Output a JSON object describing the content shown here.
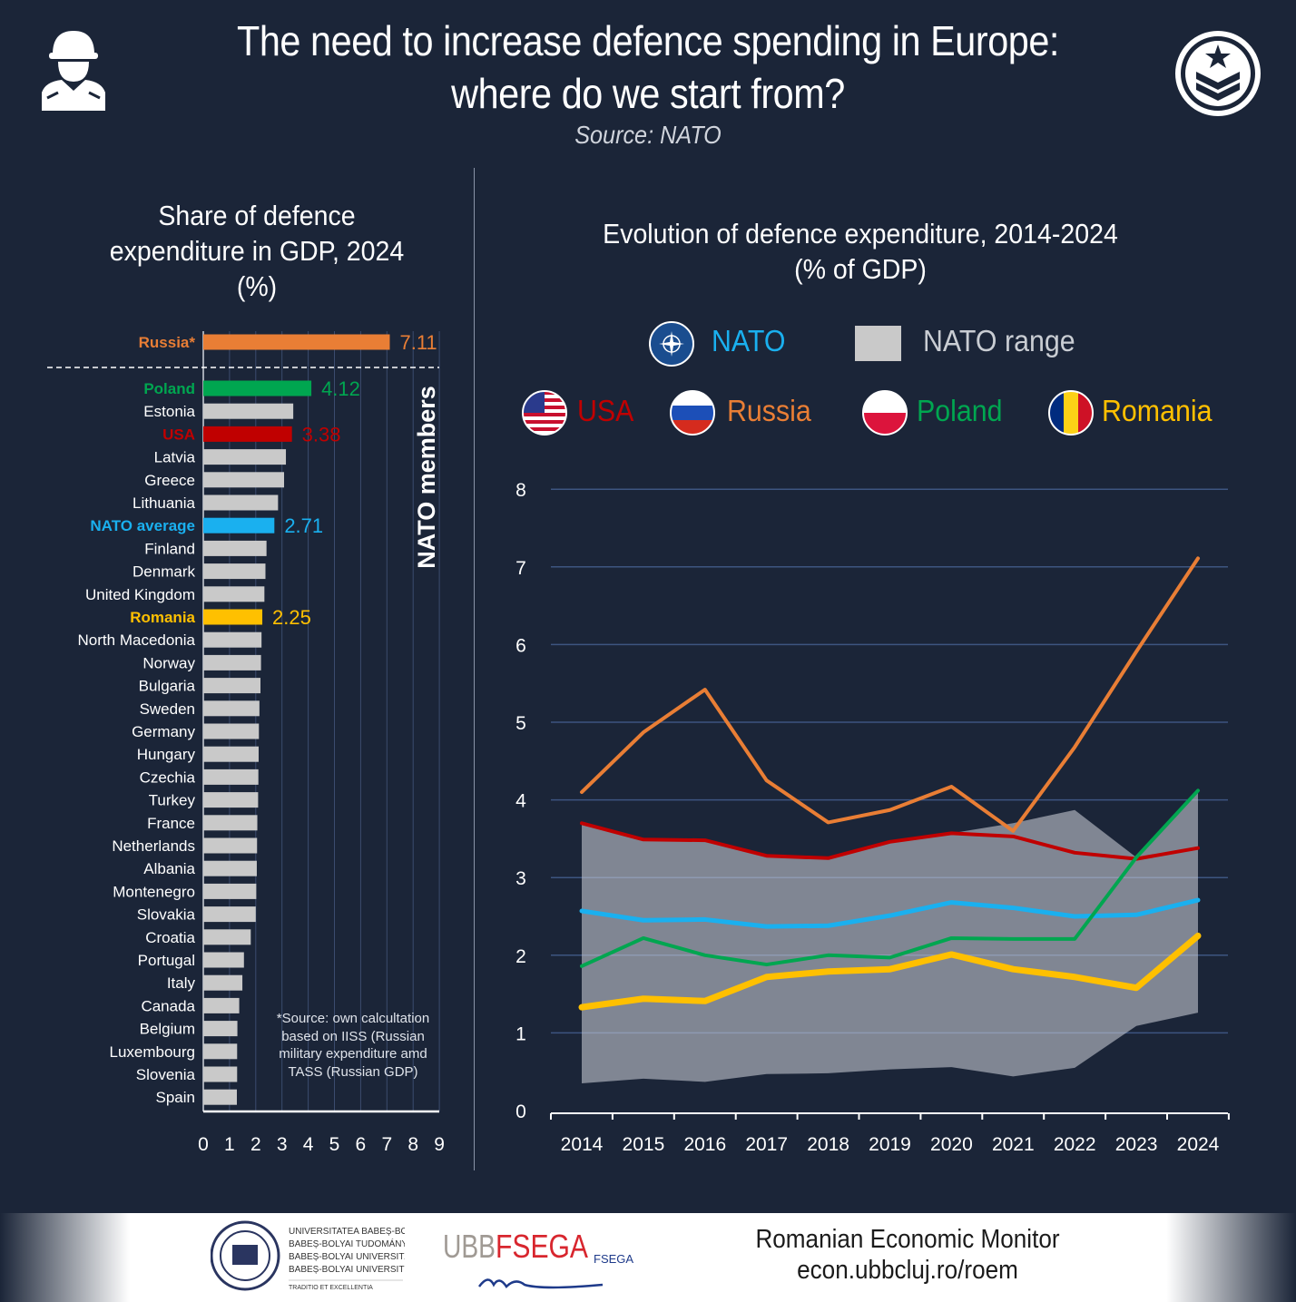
{
  "header": {
    "title_line1": "The need to increase defence spending in Europe:",
    "title_line2": "where do we start from?",
    "source": "Source: NATO"
  },
  "colors": {
    "background": "#1b2538",
    "russia": "#e97e35",
    "usa": "#c00000",
    "poland": "#00a650",
    "romania": "#ffc000",
    "nato": "#1ab0ef",
    "range": "#7a808a",
    "other": "#c9c9c9"
  },
  "chart_data": [
    {
      "type": "bar",
      "title_line1": "Share of defence",
      "title_line2": "expenditure in GDP, 2024",
      "title_line3": "(%)",
      "group_label": "NATO members",
      "xlim": [
        0,
        9
      ],
      "x_ticks": [
        "0",
        "1",
        "2",
        "3",
        "4",
        "5",
        "6",
        "7",
        "8",
        "9"
      ],
      "items": [
        {
          "label": "Russia*",
          "value": 7.11,
          "value_label": "7.11",
          "color": "#e97e35",
          "highlight": true
        },
        {
          "label": "Poland",
          "value": 4.12,
          "value_label": "4.12",
          "color": "#00a650",
          "highlight": true
        },
        {
          "label": "Estonia",
          "value": 3.43
        },
        {
          "label": "USA",
          "value": 3.38,
          "value_label": "3.38",
          "color": "#c00000",
          "highlight": true
        },
        {
          "label": "Latvia",
          "value": 3.15
        },
        {
          "label": "Greece",
          "value": 3.08
        },
        {
          "label": "Lithuania",
          "value": 2.85
        },
        {
          "label": "NATO average",
          "value": 2.71,
          "value_label": "2.71",
          "color": "#1ab0ef",
          "highlight": true
        },
        {
          "label": "Finland",
          "value": 2.41
        },
        {
          "label": "Denmark",
          "value": 2.37
        },
        {
          "label": "United Kingdom",
          "value": 2.33
        },
        {
          "label": "Romania",
          "value": 2.25,
          "value_label": "2.25",
          "color": "#ffc000",
          "highlight": true
        },
        {
          "label": "North Macedonia",
          "value": 2.22
        },
        {
          "label": "Norway",
          "value": 2.2
        },
        {
          "label": "Bulgaria",
          "value": 2.18
        },
        {
          "label": "Sweden",
          "value": 2.14
        },
        {
          "label": "Germany",
          "value": 2.12
        },
        {
          "label": "Hungary",
          "value": 2.11
        },
        {
          "label": "Czechia",
          "value": 2.1
        },
        {
          "label": "Turkey",
          "value": 2.09
        },
        {
          "label": "France",
          "value": 2.06
        },
        {
          "label": "Netherlands",
          "value": 2.05
        },
        {
          "label": "Albania",
          "value": 2.04
        },
        {
          "label": "Montenegro",
          "value": 2.02
        },
        {
          "label": "Slovakia",
          "value": 2.0
        },
        {
          "label": "Croatia",
          "value": 1.81
        },
        {
          "label": "Portugal",
          "value": 1.55
        },
        {
          "label": "Italy",
          "value": 1.49
        },
        {
          "label": "Canada",
          "value": 1.37
        },
        {
          "label": "Belgium",
          "value": 1.3
        },
        {
          "label": "Luxembourg",
          "value": 1.29
        },
        {
          "label": "Slovenia",
          "value": 1.29
        },
        {
          "label": "Spain",
          "value": 1.28
        }
      ],
      "note": "*Source: own calcultation based on IISS (Russian military expenditure amd TASS (Russian GDP)"
    },
    {
      "type": "line",
      "title_line1": "Evolution of defence expenditure, 2014-2024",
      "title_line2": "(% of GDP)",
      "x": [
        "2014",
        "2015",
        "2016",
        "2017",
        "2018",
        "2019",
        "2020",
        "2021",
        "2022",
        "2023",
        "2024"
      ],
      "ylim": [
        0,
        8
      ],
      "y_ticks": [
        "0",
        "1",
        "2",
        "3",
        "4",
        "5",
        "6",
        "7",
        "8"
      ],
      "grid": true,
      "legend": [
        {
          "name": "NATO",
          "color": "#1ab0ef",
          "icon": "nato-emblem-icon"
        },
        {
          "name": "NATO range",
          "color": "#c9c9c9",
          "icon": "gray-square"
        },
        {
          "name": "USA",
          "color": "#c00000",
          "icon": "usa-flag-icon"
        },
        {
          "name": "Russia",
          "color": "#e97e35",
          "icon": "russia-flag-icon"
        },
        {
          "name": "Poland",
          "color": "#00a650",
          "icon": "poland-flag-icon"
        },
        {
          "name": "Romania",
          "color": "#ffc000",
          "icon": "romania-flag-icon"
        }
      ],
      "range": {
        "name": "NATO range",
        "upper": [
          3.7,
          3.49,
          3.48,
          3.28,
          3.25,
          3.46,
          3.57,
          3.7,
          3.87,
          3.26,
          4.12
        ],
        "lower": [
          0.35,
          0.41,
          0.37,
          0.47,
          0.48,
          0.53,
          0.56,
          0.44,
          0.55,
          1.09,
          1.26
        ]
      },
      "series": [
        {
          "name": "Russia",
          "color": "#e97e35",
          "width": 4,
          "values": [
            4.1,
            4.87,
            5.42,
            4.25,
            3.71,
            3.87,
            4.17,
            3.6,
            4.68,
            5.91,
            7.11
          ]
        },
        {
          "name": "USA",
          "color": "#c00000",
          "width": 4,
          "values": [
            3.7,
            3.49,
            3.48,
            3.28,
            3.25,
            3.46,
            3.57,
            3.53,
            3.32,
            3.24,
            3.38
          ]
        },
        {
          "name": "NATO",
          "color": "#1ab0ef",
          "width": 5,
          "values": [
            2.57,
            2.45,
            2.46,
            2.37,
            2.38,
            2.51,
            2.68,
            2.61,
            2.5,
            2.52,
            2.71
          ]
        },
        {
          "name": "Poland",
          "color": "#00a650",
          "width": 4,
          "values": [
            1.86,
            2.22,
            2.0,
            1.88,
            2.0,
            1.97,
            2.22,
            2.21,
            2.21,
            3.26,
            4.12
          ]
        },
        {
          "name": "Romania",
          "color": "#ffc000",
          "width": 7,
          "values": [
            1.33,
            1.44,
            1.41,
            1.72,
            1.79,
            1.82,
            2.01,
            1.82,
            1.72,
            1.58,
            2.25
          ]
        }
      ]
    }
  ],
  "footer": {
    "university_logo_text": "UNIVERSITATEA BABEȘ-BOLYAI / BABEȘ-BOLYAI TUDOMÁNYEGYETEM / BABEȘ-BOLYAI UNIVERSITÄT / BABEȘ-BOLYAI UNIVERSITY / TRADITIO ET EXCELLENTIA",
    "fsega_logo_text": "UBBFSEGA",
    "monitor_name": "Romanian Economic Monitor",
    "url": "econ.ubbcluj.ro/roem"
  }
}
